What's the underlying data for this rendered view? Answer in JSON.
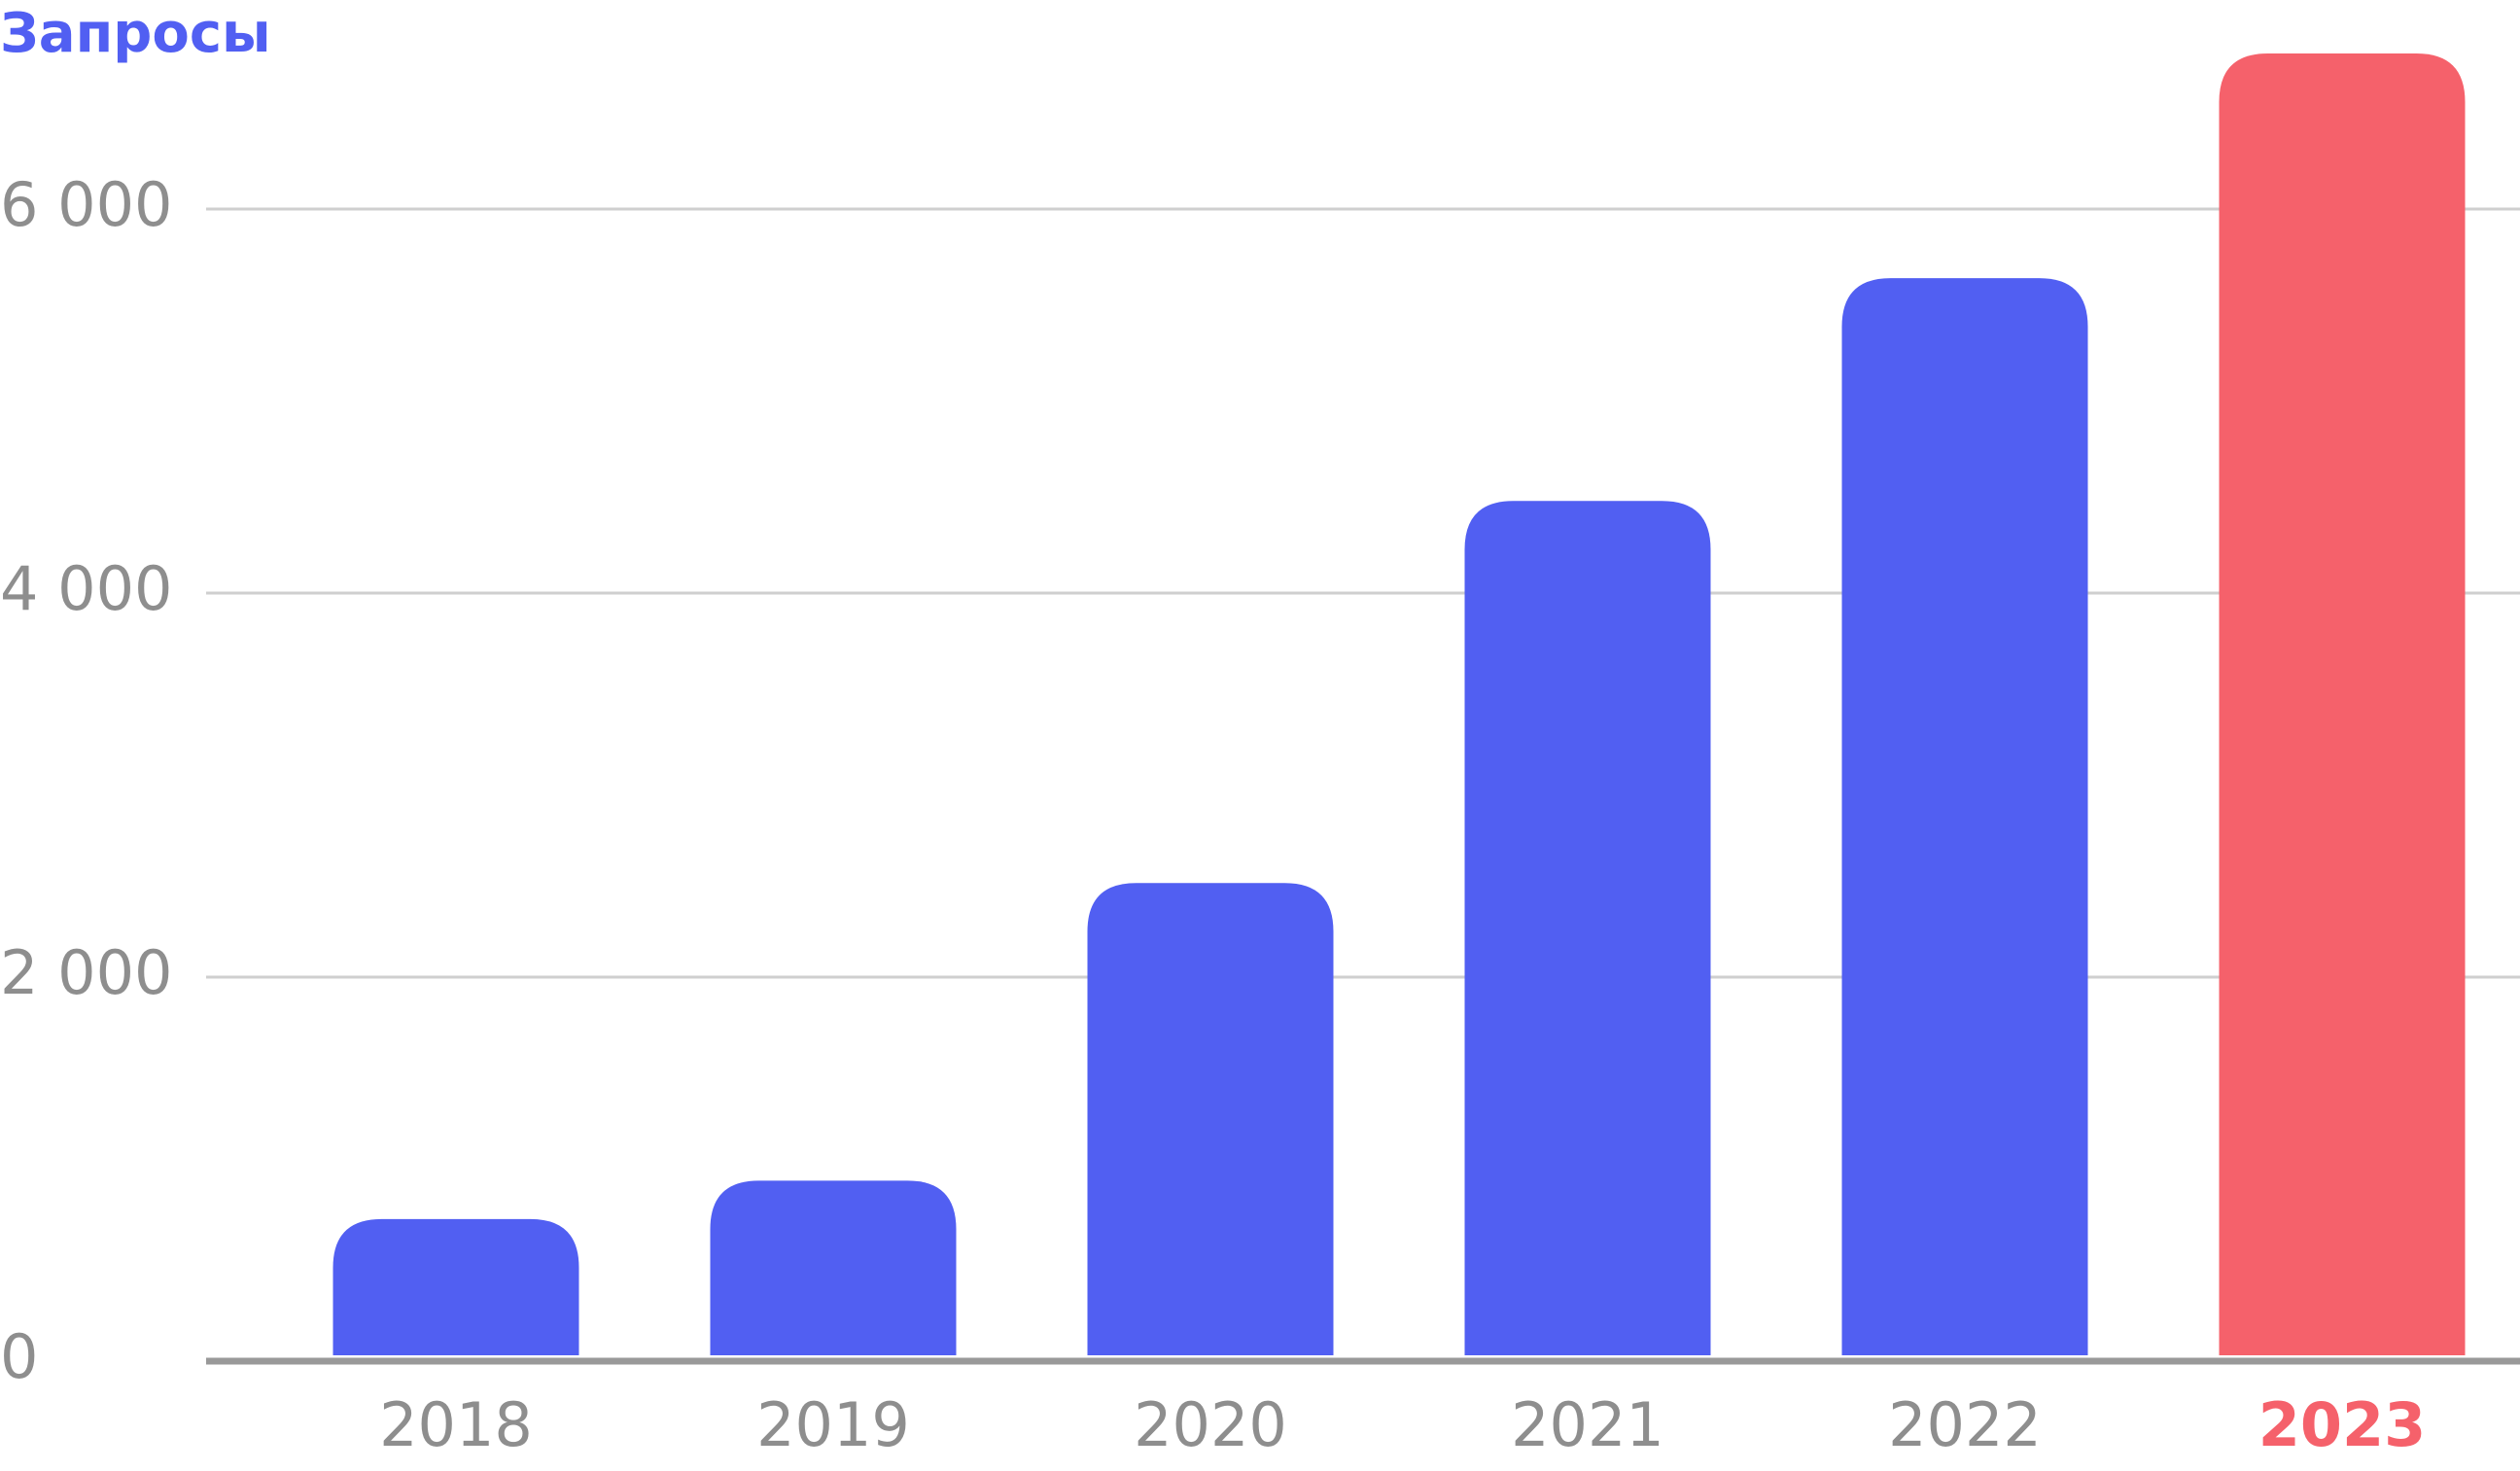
{
  "chart_data": {
    "type": "bar",
    "title": "Запросы",
    "categories": [
      "2018",
      "2019",
      "2020",
      "2021",
      "2022",
      "2023"
    ],
    "values": [
      740,
      940,
      2490,
      4480,
      5640,
      6810
    ],
    "color": "#515ff2",
    "colors": [
      "#515ff2",
      "#515ff2",
      "#515ff2",
      "#515ff2",
      "#515ff2",
      "#f5616b"
    ],
    "ylim": [
      0,
      7000
    ],
    "yticks": [
      0,
      {
        "value": 2000,
        "label": "2 000"
      },
      {
        "value": 4000,
        "label": "4 000"
      },
      {
        "value": 6000,
        "label": "6 000"
      }
    ],
    "grid": true
  }
}
